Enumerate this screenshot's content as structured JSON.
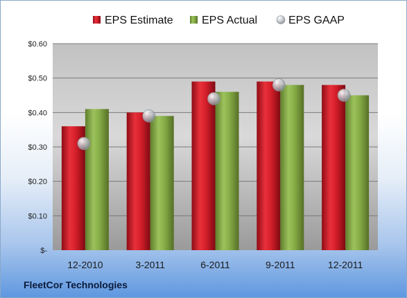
{
  "company": "FleetCor Technologies",
  "colors": {
    "estimate": "#c8102e",
    "actual": "#7fa542",
    "gaap": "#c0c4ca"
  },
  "chart_data": {
    "type": "bar",
    "categories": [
      "12-2010",
      "3-2011",
      "6-2011",
      "9-2011",
      "12-2011"
    ],
    "series": [
      {
        "name": "EPS Estimate",
        "values": [
          0.36,
          0.4,
          0.49,
          0.49,
          0.48
        ]
      },
      {
        "name": "EPS Actual",
        "values": [
          0.41,
          0.39,
          0.46,
          0.48,
          0.45
        ]
      },
      {
        "name": "EPS GAAP",
        "values": [
          0.31,
          0.39,
          0.44,
          0.48,
          0.45
        ],
        "marker": "circle"
      }
    ],
    "yticks": [
      0,
      0.1,
      0.2,
      0.3,
      0.4,
      0.5,
      0.6
    ],
    "ytick_labels": [
      "$-",
      "$0.10",
      "$0.20",
      "$0.30",
      "$0.40",
      "$0.50",
      "$0.60"
    ],
    "ylim": [
      0,
      0.6
    ],
    "legend_position": "top",
    "grid": true
  }
}
